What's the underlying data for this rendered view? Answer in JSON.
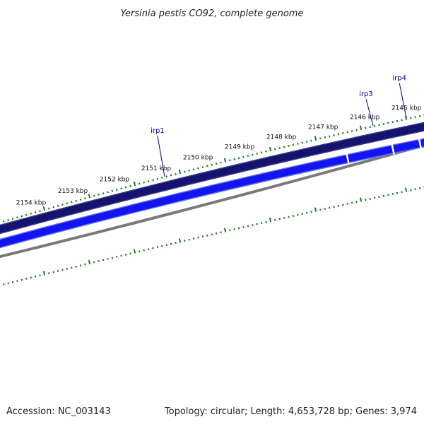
{
  "title": "Yersinia pestis CO92, complete genome",
  "footer": {
    "accession": "Accession: NC_003143",
    "summary": "Topology: circular; Length: 4,653,728 bp; Genes: 3,974"
  },
  "ruler_labels": [
    {
      "label": "2145 kbp",
      "kbp": 2145
    },
    {
      "label": "2146 kbp",
      "kbp": 2146
    },
    {
      "label": "2147 kbp",
      "kbp": 2147
    },
    {
      "label": "2148 kbp",
      "kbp": 2148
    },
    {
      "label": "2149 kbp",
      "kbp": 2149
    },
    {
      "label": "2150 kbp",
      "kbp": 2150
    },
    {
      "label": "2151 kbp",
      "kbp": 2151
    },
    {
      "label": "2152 kbp",
      "kbp": 2152
    },
    {
      "label": "2153 kbp",
      "kbp": 2153
    },
    {
      "label": "2154 kbp",
      "kbp": 2154
    }
  ],
  "gene_labels": [
    {
      "label": "irp1",
      "kbp": 2150.8
    },
    {
      "label": "irp3",
      "kbp": 2145.8
    },
    {
      "label": "irp4",
      "kbp": 2145.0
    }
  ],
  "colors": {
    "backbone": "#14146e",
    "backbone_edge": "#3a3a8a",
    "gene": "#1414f0",
    "gene_edge": "#5a6ef5",
    "gc_track": "#7a7a7a",
    "tick": "#1e7a1e",
    "gene_label": "#00008b"
  }
}
